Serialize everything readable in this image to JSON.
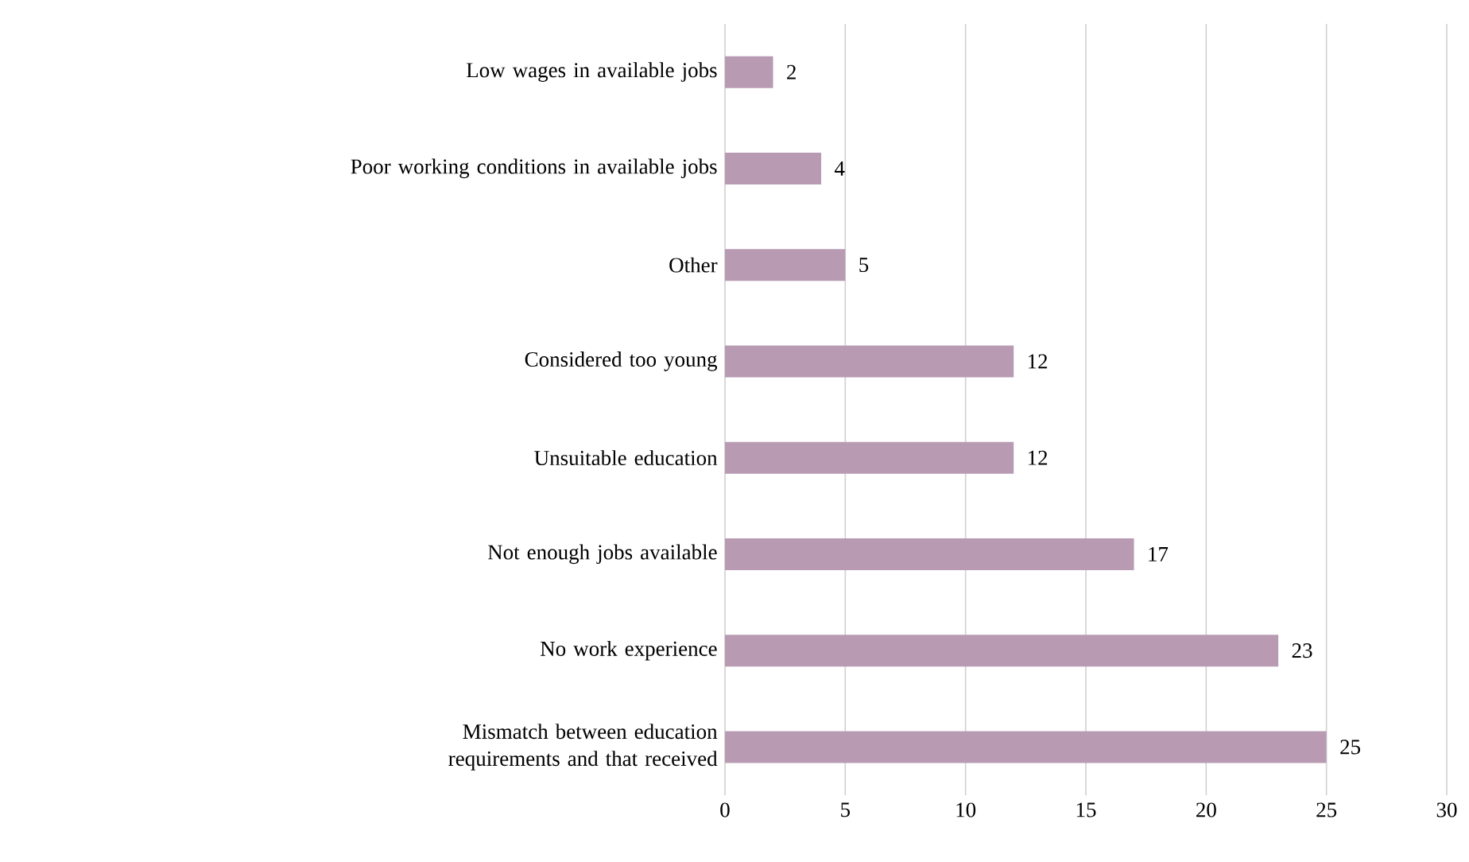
{
  "chart_data": {
    "type": "bar",
    "orientation": "horizontal",
    "categories": [
      "Low wages in available jobs",
      "Poor working conditions in available jobs",
      "Other",
      "Considered too young",
      "Unsuitable education",
      "Not enough jobs available",
      "No work experience",
      "Mismatch between education requirements and that received"
    ],
    "values": [
      2,
      4,
      5,
      12,
      12,
      17,
      23,
      25
    ],
    "color": "#b89bb3",
    "xlim": [
      0,
      30
    ],
    "xticks": [
      0,
      5,
      10,
      15,
      20,
      25,
      30
    ],
    "grid": "x",
    "data_labels": true
  }
}
